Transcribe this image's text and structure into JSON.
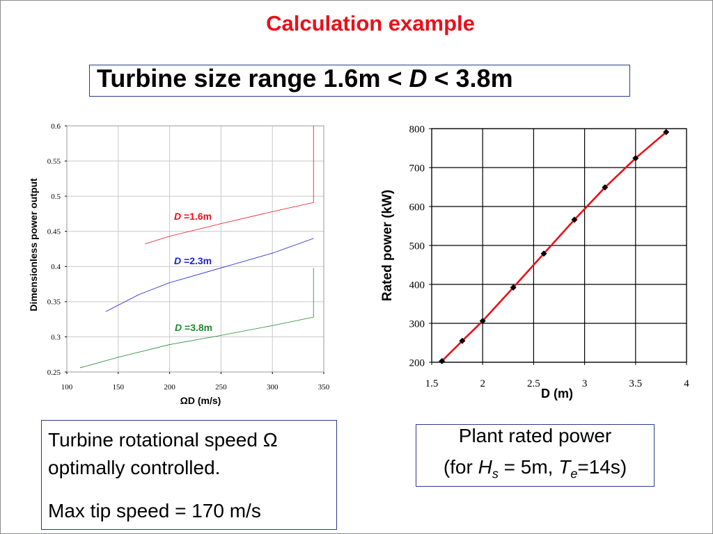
{
  "slide": {
    "title": "Calculation example",
    "range_prefix": "Turbine size range   1.6m < ",
    "range_var": "D",
    "range_suffix": " < 3.8m"
  },
  "left_box": {
    "line1": "Turbine rotational speed Ω",
    "line2": "optimally controlled.",
    "line3": "Max tip speed = 170 m/s"
  },
  "right_box": {
    "line1": "Plant rated power",
    "open": "(for ",
    "h_sym": "H",
    "h_sub": "s",
    "h_val": " = 5m, ",
    "t_sym": "T",
    "t_sub": "e",
    "t_val": "=14s)"
  },
  "chart_data": [
    {
      "type": "line",
      "xlabel": "ΩD (m/s)",
      "ylabel": "Dimensionless power output",
      "xlim": [
        100,
        350
      ],
      "ylim": [
        0.25,
        0.6
      ],
      "xticks": [
        100,
        150,
        200,
        250,
        300,
        350
      ],
      "yticks": [
        0.25,
        0.3,
        0.35,
        0.4,
        0.45,
        0.5,
        0.55,
        0.6
      ],
      "grid": true,
      "series": [
        {
          "name_var": "D",
          "name_val": " =1.6m",
          "color": "#e8101a",
          "x": [
            176,
            200,
            250,
            300,
            340,
            340
          ],
          "y": [
            0.432,
            0.443,
            0.461,
            0.478,
            0.491,
            0.6
          ]
        },
        {
          "name_var": "D",
          "name_val": " =2.3m",
          "color": "#1a22d8",
          "x": [
            138,
            170,
            200,
            250,
            300,
            340
          ],
          "y": [
            0.336,
            0.36,
            0.377,
            0.398,
            0.419,
            0.44
          ]
        },
        {
          "name_var": "D",
          "name_val": " =3.8m",
          "color": "#1a8a2a",
          "x": [
            113,
            150,
            200,
            250,
            300,
            340,
            340
          ],
          "y": [
            0.256,
            0.271,
            0.289,
            0.302,
            0.316,
            0.328,
            0.398
          ]
        }
      ]
    },
    {
      "type": "line",
      "xlabel": "D (m)",
      "ylabel": "Rated power (kW)",
      "xlim": [
        1.5,
        4
      ],
      "ylim": [
        200,
        800
      ],
      "xticks": [
        1.5,
        2,
        2.5,
        3,
        3.5,
        4
      ],
      "yticks": [
        200,
        300,
        400,
        500,
        600,
        700,
        800
      ],
      "grid": true,
      "series": [
        {
          "color": "#e8101a",
          "marker_color": "#000000",
          "x": [
            1.6,
            1.8,
            2.0,
            2.3,
            2.6,
            2.9,
            3.2,
            3.5,
            3.8
          ],
          "y": [
            203,
            255,
            306,
            392,
            479,
            566,
            649,
            724,
            791
          ]
        }
      ]
    }
  ]
}
